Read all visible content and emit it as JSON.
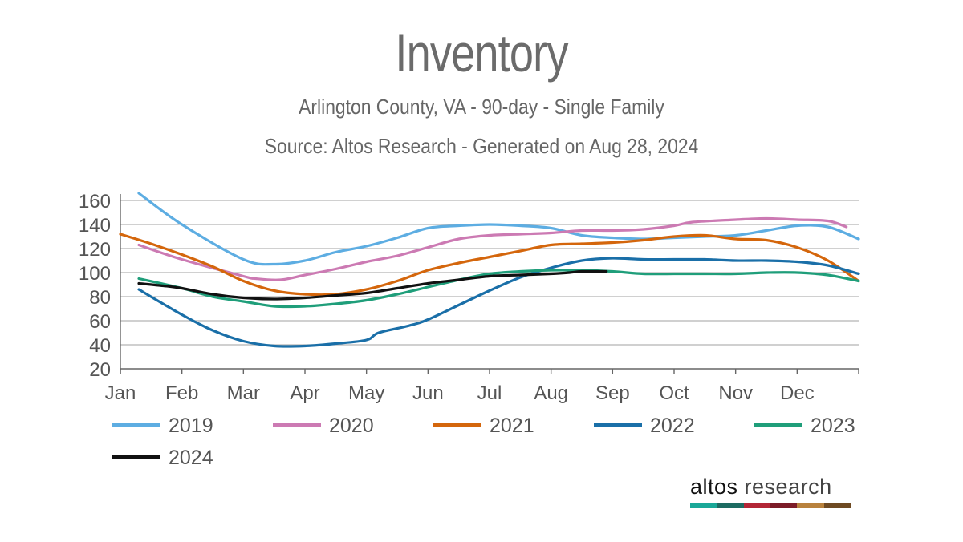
{
  "chart_data": {
    "type": "line",
    "title": "Inventory",
    "subtitle": "Arlington County, VA - 90-day - Single Family",
    "source": "Source: Altos Research - Generated on Aug 28, 2024",
    "xlabel": "",
    "ylabel": "",
    "ylim": [
      20,
      160
    ],
    "yticks": [
      20,
      40,
      60,
      80,
      100,
      120,
      140,
      160
    ],
    "months": [
      "Jan",
      "Feb",
      "Mar",
      "Apr",
      "May",
      "Jun",
      "Jul",
      "Aug",
      "Sep",
      "Oct",
      "Nov",
      "Dec"
    ],
    "grid": true,
    "legend_position": "bottom",
    "series": [
      {
        "name": "2019",
        "color": "#5dade2",
        "points": [
          [
            0.3,
            166
          ],
          [
            1,
            140
          ],
          [
            2,
            111
          ],
          [
            2.5,
            107
          ],
          [
            3,
            110
          ],
          [
            3.5,
            117
          ],
          [
            4,
            122
          ],
          [
            4.5,
            129
          ],
          [
            5,
            137
          ],
          [
            5.5,
            139
          ],
          [
            6,
            140
          ],
          [
            6.5,
            139
          ],
          [
            7,
            137
          ],
          [
            7.5,
            131
          ],
          [
            8,
            129
          ],
          [
            8.5,
            128
          ],
          [
            9,
            129
          ],
          [
            9.5,
            130
          ],
          [
            10,
            131
          ],
          [
            10.5,
            135
          ],
          [
            11,
            139
          ],
          [
            11.5,
            138
          ],
          [
            12,
            128
          ]
        ]
      },
      {
        "name": "2020",
        "color": "#cc7ab3",
        "points": [
          [
            0.3,
            123
          ],
          [
            1,
            111
          ],
          [
            2,
            97
          ],
          [
            2.2,
            95
          ],
          [
            2.6,
            94
          ],
          [
            3,
            98
          ],
          [
            3.5,
            103
          ],
          [
            4,
            109
          ],
          [
            4.5,
            114
          ],
          [
            5,
            121
          ],
          [
            5.5,
            128
          ],
          [
            6,
            131
          ],
          [
            6.5,
            132
          ],
          [
            7,
            133
          ],
          [
            7.5,
            135
          ],
          [
            8,
            135
          ],
          [
            8.5,
            136
          ],
          [
            9,
            139
          ],
          [
            9.3,
            142
          ],
          [
            10,
            144
          ],
          [
            10.5,
            145
          ],
          [
            11,
            144
          ],
          [
            11.5,
            143
          ],
          [
            11.8,
            138
          ]
        ]
      },
      {
        "name": "2021",
        "color": "#d4660c",
        "points": [
          [
            0,
            132
          ],
          [
            0.5,
            124
          ],
          [
            1,
            115
          ],
          [
            1.5,
            105
          ],
          [
            2,
            93
          ],
          [
            2.5,
            85
          ],
          [
            3,
            82
          ],
          [
            3.5,
            82
          ],
          [
            4,
            86
          ],
          [
            4.5,
            93
          ],
          [
            5,
            102
          ],
          [
            5.5,
            108
          ],
          [
            6,
            113
          ],
          [
            6.5,
            118
          ],
          [
            7,
            123
          ],
          [
            7.5,
            124
          ],
          [
            8,
            125
          ],
          [
            8.5,
            127
          ],
          [
            9,
            130
          ],
          [
            9.5,
            131
          ],
          [
            10,
            128
          ],
          [
            10.5,
            127
          ],
          [
            11,
            121
          ],
          [
            11.5,
            110
          ],
          [
            12,
            93
          ]
        ]
      },
      {
        "name": "2022",
        "color": "#1a6fa8",
        "points": [
          [
            0.3,
            86
          ],
          [
            1,
            65
          ],
          [
            1.5,
            52
          ],
          [
            2,
            43
          ],
          [
            2.5,
            39
          ],
          [
            3,
            39
          ],
          [
            3.5,
            41
          ],
          [
            4,
            44
          ],
          [
            4.2,
            50
          ],
          [
            4.7,
            56
          ],
          [
            5,
            61
          ],
          [
            5.5,
            73
          ],
          [
            6,
            85
          ],
          [
            6.5,
            96
          ],
          [
            7,
            104
          ],
          [
            7.5,
            110
          ],
          [
            8,
            112
          ],
          [
            8.5,
            111
          ],
          [
            9,
            111
          ],
          [
            9.5,
            111
          ],
          [
            10,
            110
          ],
          [
            10.5,
            110
          ],
          [
            11,
            109
          ],
          [
            11.5,
            106
          ],
          [
            12,
            99
          ]
        ]
      },
      {
        "name": "2023",
        "color": "#1f9e7a",
        "points": [
          [
            0.3,
            95
          ],
          [
            1,
            87
          ],
          [
            1.5,
            80
          ],
          [
            2,
            76
          ],
          [
            2.5,
            72
          ],
          [
            3,
            72
          ],
          [
            3.5,
            74
          ],
          [
            4,
            77
          ],
          [
            4.5,
            82
          ],
          [
            5,
            88
          ],
          [
            5.5,
            94
          ],
          [
            6,
            99
          ],
          [
            6.5,
            101
          ],
          [
            7,
            102
          ],
          [
            7.5,
            102
          ],
          [
            8,
            101
          ],
          [
            8.5,
            99
          ],
          [
            9,
            99
          ],
          [
            9.5,
            99
          ],
          [
            10,
            99
          ],
          [
            10.5,
            100
          ],
          [
            11,
            100
          ],
          [
            11.5,
            98
          ],
          [
            12,
            93
          ]
        ]
      },
      {
        "name": "2024",
        "color": "#111111",
        "points": [
          [
            0.3,
            91
          ],
          [
            0.7,
            89
          ],
          [
            1,
            87
          ],
          [
            1.5,
            82
          ],
          [
            2,
            79
          ],
          [
            2.5,
            78
          ],
          [
            3,
            79
          ],
          [
            3.5,
            81
          ],
          [
            4,
            83
          ],
          [
            4.5,
            87
          ],
          [
            5,
            91
          ],
          [
            5.5,
            94
          ],
          [
            6,
            97
          ],
          [
            6.5,
            98
          ],
          [
            7,
            99
          ],
          [
            7.3,
            100
          ],
          [
            7.5,
            101
          ],
          [
            7.9,
            101
          ]
        ]
      }
    ]
  },
  "logo": {
    "word1": "altos",
    "word2": " research",
    "bar_colors": [
      "#1aa898",
      "#1d6b62",
      "#b32636",
      "#7c1c28",
      "#b8813c",
      "#6e4a22"
    ]
  }
}
